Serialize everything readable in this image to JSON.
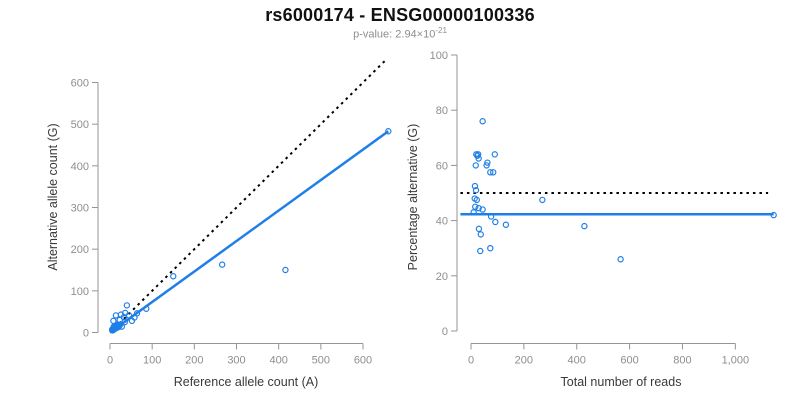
{
  "header": {
    "title": "rs6000174 - ENSG00000100336",
    "pvalue_prefix": "p-value: 2.94×10",
    "pvalue_exponent": "-21"
  },
  "colors": {
    "point_stroke": "#1f7fe8",
    "fit_line": "#1f7fe8",
    "identity_line": "#000000",
    "axis": "#949494",
    "tick_label": "#8e8e8e",
    "axis_title": "#3a3a3a"
  },
  "chart_data": [
    {
      "type": "scatter",
      "panel": "left",
      "xlabel": "Reference allele count (A)",
      "ylabel": "Alternative allele count (G)",
      "x_ticks": [
        0,
        100,
        200,
        300,
        400,
        500,
        600
      ],
      "x_tick_labels": [
        "0",
        "100",
        "200",
        "300",
        "400",
        "500",
        "600"
      ],
      "y_ticks": [
        0,
        100,
        200,
        300,
        400,
        500,
        600
      ],
      "y_tick_labels": [
        "0",
        "100",
        "200",
        "300",
        "400",
        "500",
        "600"
      ],
      "xlim": [
        0,
        676
      ],
      "ylim": [
        0,
        672
      ],
      "grid": false,
      "legend": false,
      "points": [
        [
          660,
          483
        ],
        [
          416,
          150
        ],
        [
          266,
          163
        ],
        [
          150,
          135
        ],
        [
          86,
          57
        ],
        [
          40,
          65
        ],
        [
          64,
          46
        ],
        [
          36,
          47
        ],
        [
          26,
          43
        ],
        [
          14,
          41
        ],
        [
          45,
          41
        ],
        [
          58,
          36
        ],
        [
          33,
          37
        ],
        [
          23,
          30
        ],
        [
          52,
          28
        ],
        [
          35,
          25
        ],
        [
          8,
          28
        ],
        [
          17,
          19
        ],
        [
          28,
          14
        ],
        [
          12,
          10
        ],
        [
          5,
          7
        ],
        [
          7,
          9
        ],
        [
          9,
          11
        ],
        [
          11,
          13
        ],
        [
          13,
          15
        ],
        [
          15,
          17
        ],
        [
          17,
          14
        ],
        [
          19,
          16
        ],
        [
          21,
          18
        ],
        [
          10,
          8
        ],
        [
          12,
          12
        ],
        [
          14,
          10
        ],
        [
          16,
          12
        ],
        [
          18,
          15
        ],
        [
          8,
          6
        ],
        [
          6,
          5
        ],
        [
          20,
          13
        ],
        [
          22,
          16
        ],
        [
          24,
          19
        ],
        [
          9,
          14
        ]
      ],
      "lines": [
        {
          "name": "identity-line",
          "style": "dashed",
          "color": "#000000",
          "width": 2,
          "from": [
            0,
            0
          ],
          "to": [
            655,
            655
          ]
        },
        {
          "name": "fit-line",
          "style": "solid",
          "color": "#1f7fe8",
          "width": 2.5,
          "from": [
            0,
            0
          ],
          "to": [
            660,
            483
          ]
        }
      ]
    },
    {
      "type": "scatter",
      "panel": "right",
      "xlabel": "Total number of reads",
      "ylabel": "Percentage alternative (G)",
      "x_ticks": [
        0,
        200,
        400,
        600,
        800,
        1000
      ],
      "x_tick_labels": [
        "0",
        "200",
        "400",
        "600",
        "800",
        "1,000"
      ],
      "y_ticks": [
        0,
        20,
        40,
        60,
        80,
        100
      ],
      "y_tick_labels": [
        "0",
        "20",
        "40",
        "60",
        "80",
        "100"
      ],
      "xlim": [
        -55,
        1210
      ],
      "ylim": [
        0,
        101
      ],
      "grid": false,
      "legend": false,
      "points": [
        [
          44,
          76
        ],
        [
          20,
          64
        ],
        [
          27,
          64
        ],
        [
          24,
          63.5
        ],
        [
          29,
          62.5
        ],
        [
          62,
          61
        ],
        [
          90,
          64
        ],
        [
          18,
          60
        ],
        [
          59,
          60
        ],
        [
          73,
          57.5
        ],
        [
          84,
          57.5
        ],
        [
          15,
          52.5
        ],
        [
          19,
          51
        ],
        [
          14,
          48
        ],
        [
          22,
          47.5
        ],
        [
          270,
          47.5
        ],
        [
          16,
          45
        ],
        [
          29,
          44.5
        ],
        [
          44,
          44
        ],
        [
          10,
          43
        ],
        [
          76,
          41.5
        ],
        [
          92,
          39.5
        ],
        [
          132,
          38.5
        ],
        [
          429,
          38
        ],
        [
          30,
          37
        ],
        [
          37,
          35
        ],
        [
          35,
          29
        ],
        [
          73,
          30
        ],
        [
          566,
          26
        ],
        [
          1145,
          42
        ]
      ],
      "lines": [
        {
          "name": "identity-line",
          "style": "dashed",
          "color": "#000000",
          "width": 2,
          "from": [
            -40,
            50
          ],
          "to": [
            1124,
            50
          ]
        },
        {
          "name": "fit-line",
          "style": "solid",
          "color": "#1f7fe8",
          "width": 2.5,
          "from": [
            -40,
            42.3
          ],
          "to": [
            1145,
            42.3
          ]
        }
      ]
    }
  ]
}
